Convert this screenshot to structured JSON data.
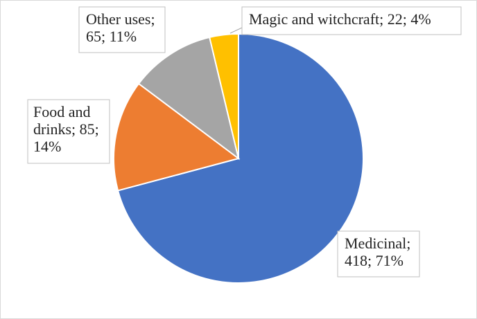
{
  "chart_data": {
    "type": "pie",
    "title": "",
    "slices": [
      {
        "label": "Medicinal",
        "value": 418,
        "percent": "71%",
        "color": "#4472C4",
        "label_lines": [
          "Medicinal;",
          "418; 71%"
        ]
      },
      {
        "label": "Food and drinks",
        "value": 85,
        "percent": "14%",
        "color": "#ED7D31",
        "label_lines": [
          "Food and",
          "drinks; 85;",
          "14%"
        ]
      },
      {
        "label": "Other uses",
        "value": 65,
        "percent": "11%",
        "color": "#A5A5A5",
        "label_lines": [
          "Other uses;",
          "65; 11%"
        ]
      },
      {
        "label": "Magic and witchcraft",
        "value": 22,
        "percent": "4%",
        "color": "#FFC000",
        "label_lines": [
          "Magic and witchcraft; 22; 4%"
        ]
      }
    ],
    "start_angle_deg": 0,
    "direction": "clockwise",
    "legend": "none",
    "data_label_format": "category; value; percent"
  }
}
